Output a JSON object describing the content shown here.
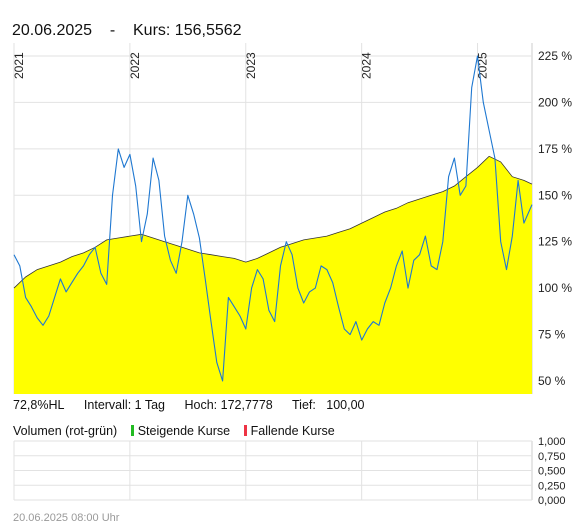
{
  "header": {
    "date": "20.06.2025",
    "separator": "-",
    "kurs_label": "Kurs:",
    "kurs_value": "156,5562"
  },
  "stats": {
    "hl": "72,8%HL",
    "interval": "Intervall: 1 Tag",
    "hoch": "Hoch: 172,7778",
    "tief": "Tief:   100,00"
  },
  "volume_legend": {
    "label": "Volumen (rot-grün)",
    "rising": "Steigende Kurse",
    "falling": "Fallende Kurse",
    "rising_color": "#22bb22",
    "falling_color": "#ee3344"
  },
  "footer": {
    "timestamp": "20.06.2025 08:00 Uhr"
  },
  "colors": {
    "area_fill": "#ffff00",
    "area_line": "#333333",
    "blue_line": "#1f78d1",
    "grid": "#e2e2e2"
  },
  "chart_data": [
    {
      "type": "area",
      "x_ticks": [
        "2021",
        "2022",
        "2023",
        "2024",
        "2025"
      ],
      "y_ticks": [
        "50 %",
        "75 %",
        "100 %",
        "125 %",
        "150 %",
        "175 %",
        "200 %",
        "225 %"
      ],
      "ylim": [
        43,
        232
      ],
      "xlim": [
        2021.0,
        2025.47
      ],
      "grid": true,
      "series": [
        {
          "style": "area",
          "x": [
            2021.0,
            2021.1,
            2021.2,
            2021.3,
            2021.4,
            2021.5,
            2021.6,
            2021.7,
            2021.8,
            2021.9,
            2022.0,
            2022.1,
            2022.2,
            2022.3,
            2022.4,
            2022.5,
            2022.6,
            2022.7,
            2022.8,
            2022.9,
            2023.0,
            2023.1,
            2023.2,
            2023.3,
            2023.4,
            2023.5,
            2023.6,
            2023.7,
            2023.8,
            2023.9,
            2024.0,
            2024.1,
            2024.2,
            2024.3,
            2024.4,
            2024.5,
            2024.6,
            2024.7,
            2024.8,
            2024.9,
            2025.0,
            2025.1,
            2025.2,
            2025.3,
            2025.4,
            2025.47
          ],
          "values": [
            100,
            106,
            110,
            112,
            114,
            117,
            119,
            122,
            126,
            127,
            128,
            129,
            127,
            125,
            123,
            121,
            119,
            118,
            117,
            116,
            114,
            116,
            119,
            122,
            124,
            126,
            127,
            128,
            130,
            132,
            135,
            138,
            141,
            143,
            146,
            148,
            150,
            152,
            155,
            160,
            165,
            171,
            168,
            160,
            158,
            156
          ]
        },
        {
          "style": "line",
          "x": [
            2021.0,
            2021.05,
            2021.1,
            2021.15,
            2021.2,
            2021.25,
            2021.3,
            2021.35,
            2021.4,
            2021.45,
            2021.5,
            2021.55,
            2021.6,
            2021.65,
            2021.7,
            2021.75,
            2021.8,
            2021.85,
            2021.9,
            2021.95,
            2022.0,
            2022.05,
            2022.1,
            2022.15,
            2022.2,
            2022.25,
            2022.3,
            2022.35,
            2022.4,
            2022.45,
            2022.5,
            2022.55,
            2022.6,
            2022.65,
            2022.7,
            2022.75,
            2022.8,
            2022.85,
            2022.9,
            2022.95,
            2023.0,
            2023.05,
            2023.1,
            2023.15,
            2023.2,
            2023.25,
            2023.3,
            2023.35,
            2023.4,
            2023.45,
            2023.5,
            2023.55,
            2023.6,
            2023.65,
            2023.7,
            2023.75,
            2023.8,
            2023.85,
            2023.9,
            2023.95,
            2024.0,
            2024.05,
            2024.1,
            2024.15,
            2024.2,
            2024.25,
            2024.3,
            2024.35,
            2024.4,
            2024.45,
            2024.5,
            2024.55,
            2024.6,
            2024.65,
            2024.7,
            2024.75,
            2024.8,
            2024.85,
            2024.9,
            2024.95,
            2025.0,
            2025.05,
            2025.1,
            2025.15,
            2025.2,
            2025.25,
            2025.3,
            2025.35,
            2025.4,
            2025.47
          ],
          "values": [
            118,
            112,
            95,
            90,
            84,
            80,
            85,
            95,
            105,
            98,
            103,
            108,
            112,
            118,
            122,
            108,
            102,
            150,
            175,
            165,
            172,
            155,
            125,
            140,
            170,
            158,
            128,
            115,
            108,
            125,
            150,
            140,
            127,
            105,
            82,
            60,
            50,
            95,
            90,
            85,
            78,
            100,
            110,
            105,
            88,
            82,
            112,
            125,
            118,
            100,
            92,
            98,
            100,
            112,
            110,
            103,
            90,
            78,
            75,
            82,
            72,
            78,
            82,
            80,
            92,
            100,
            112,
            120,
            100,
            115,
            118,
            128,
            112,
            110,
            125,
            160,
            170,
            150,
            155,
            208,
            225,
            200,
            185,
            170,
            125,
            110,
            128,
            158,
            135,
            145
          ]
        }
      ]
    },
    {
      "type": "bar",
      "title": "Volumen (rot-grün)",
      "y_ticks": [
        "0,000",
        "0,250",
        "0,500",
        "0,750",
        "1,000"
      ],
      "ylim": [
        0,
        1
      ],
      "values": []
    }
  ]
}
